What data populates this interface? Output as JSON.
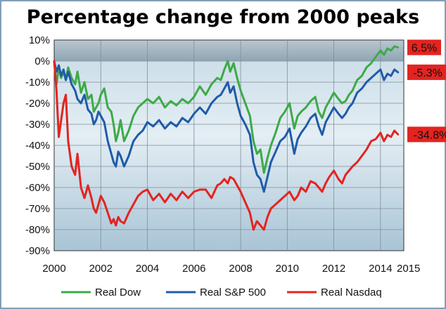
{
  "chart_data": {
    "type": "line",
    "title": "Percentage change from 2000 peaks",
    "xlabel": "",
    "ylabel": "",
    "xlim": [
      2000,
      2015
    ],
    "ylim": [
      -90,
      10
    ],
    "x_ticks": [
      2000,
      2002,
      2004,
      2006,
      2008,
      2010,
      2012,
      2014,
      2015
    ],
    "x_tick_labels": [
      "2000",
      "2002",
      "2004",
      "2006",
      "2008",
      "2010",
      "2012",
      "2014",
      "2015"
    ],
    "y_ticks": [
      10,
      0,
      -10,
      -20,
      -30,
      -40,
      -50,
      -60,
      -70,
      -80,
      -90
    ],
    "y_tick_labels": [
      "10%",
      "0%",
      "-10%",
      "-20%",
      "-30%",
      "-40%",
      "-50%",
      "-60%",
      "-70%",
      "-80%",
      "-90%"
    ],
    "grid": true,
    "legend_position": "bottom",
    "series": [
      {
        "name": "Real Dow",
        "color": "#3daa47",
        "callout": "6.5%",
        "x": [
          2000.0,
          2000.1,
          2000.2,
          2000.3,
          2000.4,
          2000.5,
          2000.6,
          2000.75,
          2000.9,
          2001.0,
          2001.15,
          2001.3,
          2001.45,
          2001.6,
          2001.7,
          2001.8,
          2001.9,
          2002.0,
          2002.15,
          2002.3,
          2002.45,
          2002.55,
          2002.65,
          2002.75,
          2002.85,
          2003.0,
          2003.2,
          2003.4,
          2003.6,
          2003.8,
          2004.0,
          2004.25,
          2004.5,
          2004.75,
          2005.0,
          2005.25,
          2005.5,
          2005.75,
          2006.0,
          2006.25,
          2006.5,
          2006.75,
          2007.0,
          2007.15,
          2007.3,
          2007.45,
          2007.55,
          2007.7,
          2007.85,
          2008.0,
          2008.2,
          2008.4,
          2008.55,
          2008.7,
          2008.85,
          2009.0,
          2009.15,
          2009.3,
          2009.5,
          2009.7,
          2009.9,
          2010.1,
          2010.3,
          2010.45,
          2010.6,
          2010.8,
          2011.0,
          2011.2,
          2011.35,
          2011.5,
          2011.65,
          2011.8,
          2012.0,
          2012.2,
          2012.35,
          2012.5,
          2012.65,
          2012.8,
          2013.0,
          2013.2,
          2013.4,
          2013.6,
          2013.8,
          2014.0,
          2014.15,
          2014.3,
          2014.45,
          2014.6,
          2014.75
        ],
        "values": [
          0,
          -11,
          -3,
          -8,
          -5,
          -9,
          -3,
          -8,
          -11,
          -5,
          -15,
          -10,
          -18,
          -16,
          -24,
          -22,
          -20,
          -16,
          -13,
          -22,
          -24,
          -30,
          -38,
          -34,
          -28,
          -38,
          -33,
          -26,
          -22,
          -20,
          -18,
          -20,
          -17,
          -22,
          -19,
          -21,
          -18,
          -20,
          -17,
          -12,
          -16,
          -11,
          -8,
          -9,
          -4,
          0,
          -5,
          -1,
          -8,
          -14,
          -20,
          -26,
          -38,
          -44,
          -42,
          -53,
          -46,
          -40,
          -34,
          -27,
          -24,
          -20,
          -32,
          -26,
          -24,
          -22,
          -19,
          -17,
          -24,
          -27,
          -22,
          -19,
          -15,
          -18,
          -20,
          -19,
          -16,
          -14,
          -9,
          -7,
          -3,
          -1,
          2,
          5,
          3,
          6,
          5,
          7,
          6.5
        ]
      },
      {
        "name": "Real S&P 500",
        "color": "#1f5ca8",
        "callout": "-5.3%",
        "x": [
          2000.0,
          2000.1,
          2000.2,
          2000.3,
          2000.4,
          2000.5,
          2000.6,
          2000.75,
          2000.9,
          2001.0,
          2001.15,
          2001.3,
          2001.45,
          2001.6,
          2001.7,
          2001.8,
          2001.9,
          2002.0,
          2002.15,
          2002.3,
          2002.45,
          2002.55,
          2002.65,
          2002.75,
          2002.85,
          2003.0,
          2003.2,
          2003.4,
          2003.6,
          2003.8,
          2004.0,
          2004.25,
          2004.5,
          2004.75,
          2005.0,
          2005.25,
          2005.5,
          2005.75,
          2006.0,
          2006.25,
          2006.5,
          2006.75,
          2007.0,
          2007.15,
          2007.3,
          2007.45,
          2007.55,
          2007.7,
          2007.85,
          2008.0,
          2008.2,
          2008.4,
          2008.55,
          2008.7,
          2008.85,
          2009.0,
          2009.15,
          2009.3,
          2009.5,
          2009.7,
          2009.9,
          2010.1,
          2010.3,
          2010.45,
          2010.6,
          2010.8,
          2011.0,
          2011.2,
          2011.35,
          2011.5,
          2011.65,
          2011.8,
          2012.0,
          2012.2,
          2012.35,
          2012.5,
          2012.65,
          2012.8,
          2013.0,
          2013.2,
          2013.4,
          2013.6,
          2013.8,
          2014.0,
          2014.15,
          2014.3,
          2014.45,
          2014.6,
          2014.75
        ],
        "values": [
          0,
          -5,
          -2,
          -7,
          -4,
          -9,
          -5,
          -11,
          -14,
          -18,
          -20,
          -16,
          -23,
          -25,
          -30,
          -28,
          -24,
          -26,
          -29,
          -38,
          -44,
          -48,
          -50,
          -43,
          -45,
          -50,
          -45,
          -38,
          -35,
          -33,
          -29,
          -31,
          -28,
          -32,
          -29,
          -31,
          -27,
          -29,
          -25,
          -22,
          -25,
          -20,
          -17,
          -16,
          -13,
          -10,
          -15,
          -12,
          -20,
          -26,
          -30,
          -35,
          -48,
          -54,
          -56,
          -62,
          -55,
          -48,
          -43,
          -38,
          -36,
          -32,
          -44,
          -37,
          -34,
          -31,
          -27,
          -25,
          -31,
          -35,
          -29,
          -26,
          -22,
          -25,
          -27,
          -25,
          -22,
          -20,
          -15,
          -13,
          -10,
          -8,
          -6,
          -4,
          -9,
          -6,
          -7,
          -4,
          -5.3
        ]
      },
      {
        "name": "Real Nasdaq",
        "color": "#e32421",
        "callout": "-34.8%",
        "x": [
          2000.0,
          2000.1,
          2000.2,
          2000.3,
          2000.4,
          2000.5,
          2000.6,
          2000.75,
          2000.9,
          2001.0,
          2001.15,
          2001.3,
          2001.45,
          2001.6,
          2001.7,
          2001.8,
          2001.9,
          2002.0,
          2002.15,
          2002.3,
          2002.45,
          2002.55,
          2002.65,
          2002.75,
          2002.85,
          2003.0,
          2003.2,
          2003.4,
          2003.6,
          2003.8,
          2004.0,
          2004.25,
          2004.5,
          2004.75,
          2005.0,
          2005.25,
          2005.5,
          2005.75,
          2006.0,
          2006.25,
          2006.5,
          2006.75,
          2007.0,
          2007.15,
          2007.3,
          2007.45,
          2007.55,
          2007.7,
          2007.85,
          2008.0,
          2008.2,
          2008.4,
          2008.55,
          2008.7,
          2008.85,
          2009.0,
          2009.15,
          2009.3,
          2009.5,
          2009.7,
          2009.9,
          2010.1,
          2010.3,
          2010.45,
          2010.6,
          2010.8,
          2011.0,
          2011.2,
          2011.35,
          2011.5,
          2011.65,
          2011.8,
          2012.0,
          2012.2,
          2012.35,
          2012.5,
          2012.65,
          2012.8,
          2013.0,
          2013.2,
          2013.4,
          2013.6,
          2013.8,
          2014.0,
          2014.15,
          2014.3,
          2014.45,
          2014.6,
          2014.75
        ],
        "values": [
          0,
          -14,
          -36,
          -28,
          -20,
          -16,
          -38,
          -50,
          -54,
          -44,
          -60,
          -65,
          -59,
          -65,
          -70,
          -72,
          -68,
          -64,
          -67,
          -72,
          -77,
          -75,
          -78,
          -74,
          -76,
          -77,
          -72,
          -68,
          -64,
          -62,
          -61,
          -66,
          -63,
          -67,
          -63,
          -66,
          -62,
          -65,
          -62,
          -61,
          -61,
          -65,
          -59,
          -58,
          -56,
          -58,
          -55,
          -56,
          -59,
          -62,
          -67,
          -72,
          -80,
          -76,
          -78,
          -80,
          -74,
          -70,
          -68,
          -66,
          -64,
          -62,
          -66,
          -64,
          -60,
          -62,
          -57,
          -58,
          -60,
          -62,
          -58,
          -55,
          -52,
          -56,
          -58,
          -54,
          -52,
          -50,
          -48,
          -45,
          -42,
          -38,
          -37,
          -34,
          -38,
          -35,
          -36,
          -33,
          -34.8
        ]
      }
    ]
  }
}
